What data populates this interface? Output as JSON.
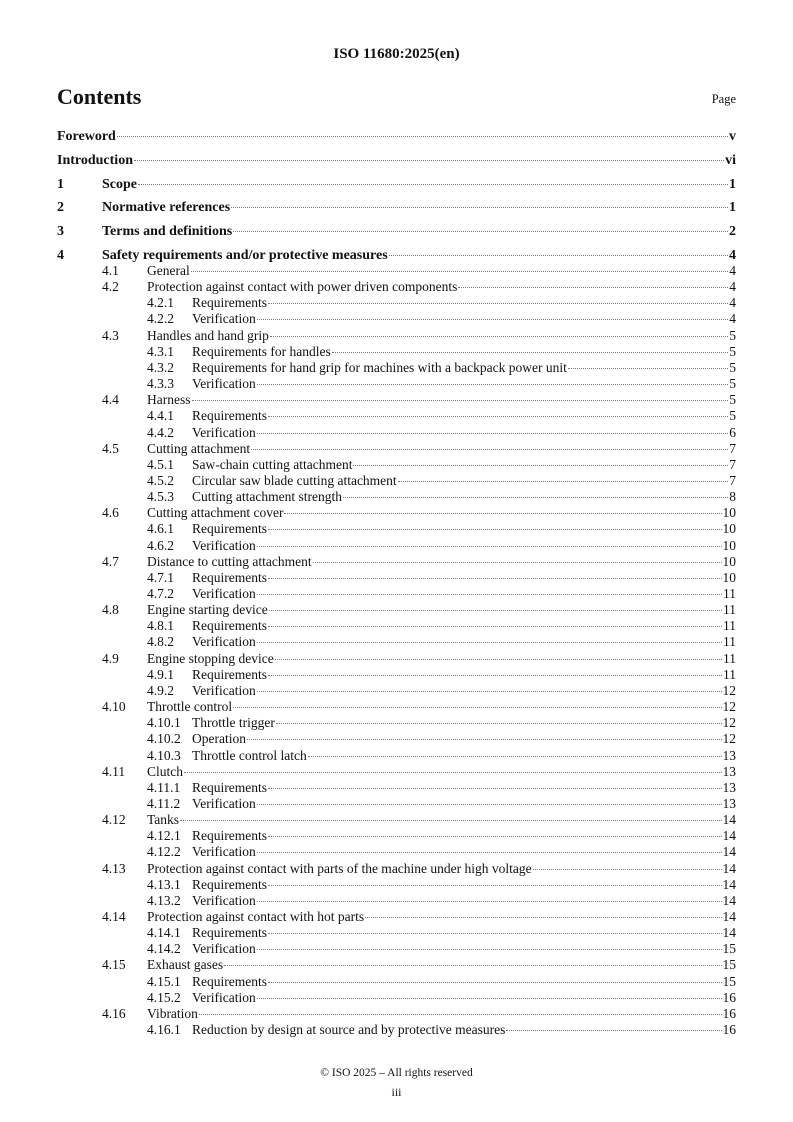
{
  "header": "ISO 11680:2025(en)",
  "title": "Contents",
  "page_label": "Page",
  "top_entries": [
    {
      "num": "",
      "title": "Foreword",
      "page": "v"
    },
    {
      "num": "",
      "title": "Introduction",
      "page": "vi"
    },
    {
      "num": "1",
      "title": "Scope",
      "page": "1"
    },
    {
      "num": "2",
      "title": "Normative references",
      "page": "1"
    },
    {
      "num": "3",
      "title": "Terms and definitions",
      "page": "2"
    },
    {
      "num": "4",
      "title": "Safety requirements and/or protective measures",
      "page": "4"
    }
  ],
  "sub_entries": [
    {
      "num": "4.1",
      "title": "General",
      "page": "4"
    },
    {
      "num": "4.2",
      "title": "Protection against contact with power driven components",
      "page": "4"
    },
    {
      "num": "4.2.1",
      "title": "Requirements",
      "page": "4"
    },
    {
      "num": "4.2.2",
      "title": "Verification",
      "page": "4"
    },
    {
      "num": "4.3",
      "title": "Handles and hand grip",
      "page": "5"
    },
    {
      "num": "4.3.1",
      "title": "Requirements for handles",
      "page": "5"
    },
    {
      "num": "4.3.2",
      "title": "Requirements for hand grip for machines with a backpack power unit",
      "page": "5"
    },
    {
      "num": "4.3.3",
      "title": "Verification",
      "page": "5"
    },
    {
      "num": "4.4",
      "title": "Harness",
      "page": "5"
    },
    {
      "num": "4.4.1",
      "title": "Requirements",
      "page": "5"
    },
    {
      "num": "4.4.2",
      "title": "Verification",
      "page": "6"
    },
    {
      "num": "4.5",
      "title": "Cutting attachment",
      "page": "7"
    },
    {
      "num": "4.5.1",
      "title": "Saw-chain cutting attachment",
      "page": "7"
    },
    {
      "num": "4.5.2",
      "title": "Circular saw blade cutting attachment",
      "page": "7"
    },
    {
      "num": "4.5.3",
      "title": "Cutting attachment strength",
      "page": "8"
    },
    {
      "num": "4.6",
      "title": "Cutting attachment cover",
      "page": "10"
    },
    {
      "num": "4.6.1",
      "title": "Requirements",
      "page": "10"
    },
    {
      "num": "4.6.2",
      "title": "Verification",
      "page": "10"
    },
    {
      "num": "4.7",
      "title": "Distance to cutting attachment",
      "page": "10"
    },
    {
      "num": "4.7.1",
      "title": "Requirements",
      "page": "10"
    },
    {
      "num": "4.7.2",
      "title": "Verification",
      "page": "11"
    },
    {
      "num": "4.8",
      "title": "Engine starting device",
      "page": "11"
    },
    {
      "num": "4.8.1",
      "title": "Requirements",
      "page": "11"
    },
    {
      "num": "4.8.2",
      "title": "Verification",
      "page": "11"
    },
    {
      "num": "4.9",
      "title": "Engine stopping device",
      "page": "11"
    },
    {
      "num": "4.9.1",
      "title": "Requirements",
      "page": "11"
    },
    {
      "num": "4.9.2",
      "title": "Verification",
      "page": "12"
    },
    {
      "num": "4.10",
      "title": "Throttle control",
      "page": "12"
    },
    {
      "num": "4.10.1",
      "title": "Throttle trigger",
      "page": "12"
    },
    {
      "num": "4.10.2",
      "title": "Operation",
      "page": "12"
    },
    {
      "num": "4.10.3",
      "title": "Throttle control latch",
      "page": "13"
    },
    {
      "num": "4.11",
      "title": "Clutch",
      "page": "13"
    },
    {
      "num": "4.11.1",
      "title": "Requirements",
      "page": "13"
    },
    {
      "num": "4.11.2",
      "title": "Verification",
      "page": "13"
    },
    {
      "num": "4.12",
      "title": "Tanks",
      "page": "14"
    },
    {
      "num": "4.12.1",
      "title": "Requirements",
      "page": "14"
    },
    {
      "num": "4.12.2",
      "title": "Verification",
      "page": "14"
    },
    {
      "num": "4.13",
      "title": "Protection against contact with parts of the machine under high voltage",
      "page": "14"
    },
    {
      "num": "4.13.1",
      "title": "Requirements",
      "page": "14"
    },
    {
      "num": "4.13.2",
      "title": "Verification",
      "page": "14"
    },
    {
      "num": "4.14",
      "title": "Protection against contact with hot parts",
      "page": "14"
    },
    {
      "num": "4.14.1",
      "title": "Requirements",
      "page": "14"
    },
    {
      "num": "4.14.2",
      "title": "Verification",
      "page": "15"
    },
    {
      "num": "4.15",
      "title": "Exhaust gases",
      "page": "15"
    },
    {
      "num": "4.15.1",
      "title": "Requirements",
      "page": "15"
    },
    {
      "num": "4.15.2",
      "title": "Verification",
      "page": "16"
    },
    {
      "num": "4.16",
      "title": "Vibration",
      "page": "16"
    },
    {
      "num": "4.16.1",
      "title": "Reduction by design at source and by protective measures",
      "page": "16"
    }
  ],
  "footer": {
    "copyright": "© ISO 2025 – All rights reserved",
    "page_number": "iii"
  }
}
